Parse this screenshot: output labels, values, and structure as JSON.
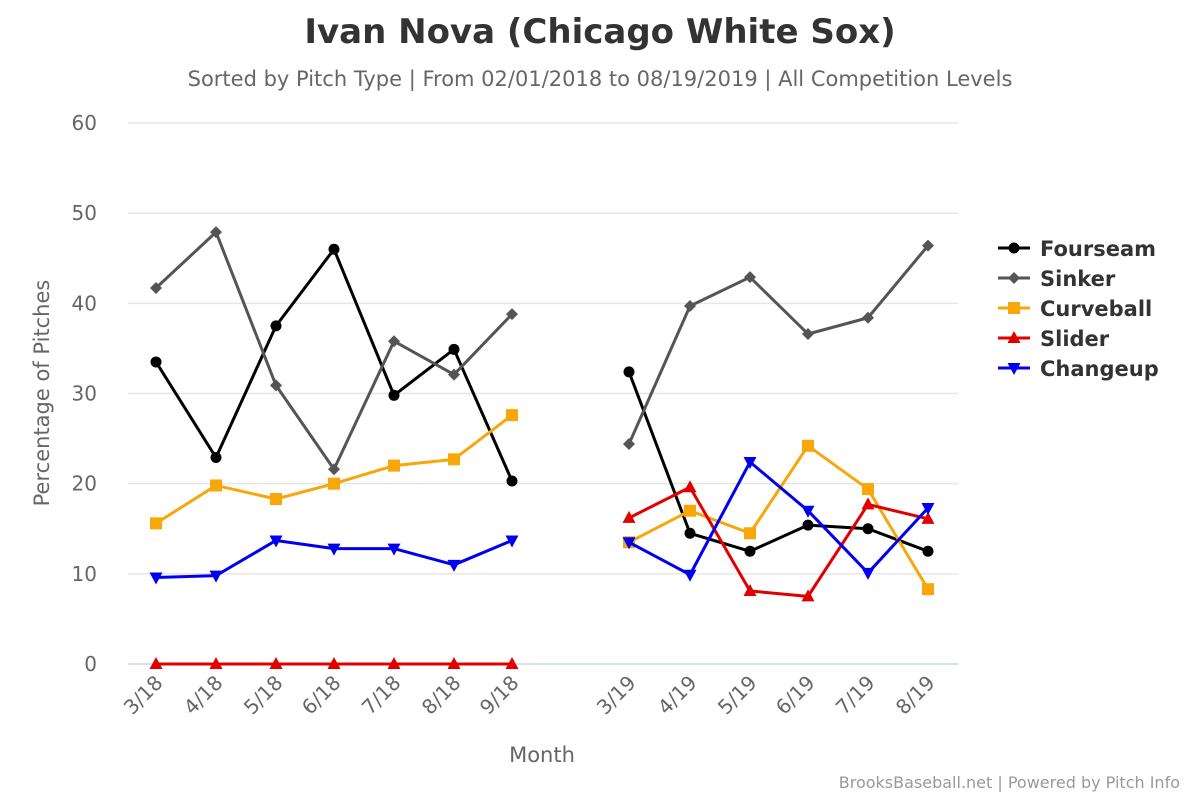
{
  "credits": "BrooksBaseball.net | Powered by Pitch Info",
  "chart_data": {
    "type": "line",
    "title": "Ivan Nova (Chicago White Sox)",
    "subtitle": "Sorted by Pitch Type | From 02/01/2018 to 08/19/2019 | All Competition Levels",
    "xlabel": "Month",
    "ylabel": "Percentage of Pitches",
    "ylim": [
      0,
      60
    ],
    "yticks": [
      0,
      10,
      20,
      30,
      40,
      50,
      60
    ],
    "grid": true,
    "legend_position": "right",
    "categories": [
      "3/18",
      "4/18",
      "5/18",
      "6/18",
      "7/18",
      "8/18",
      "9/18",
      "3/19",
      "4/19",
      "5/19",
      "6/19",
      "7/19",
      "8/19"
    ],
    "series": [
      {
        "name": "Fourseam",
        "color": "#000000",
        "marker": "circle",
        "values": [
          33.5,
          22.9,
          37.5,
          46.0,
          29.8,
          34.9,
          20.3,
          32.4,
          14.5,
          12.5,
          15.4,
          15.0,
          12.5
        ]
      },
      {
        "name": "Sinker",
        "color": "#555555",
        "marker": "diamond",
        "values": [
          41.7,
          47.9,
          30.9,
          21.6,
          35.8,
          32.1,
          38.8,
          24.4,
          39.7,
          42.9,
          36.6,
          38.4,
          46.4
        ]
      },
      {
        "name": "Curveball",
        "color": "#f7a70a",
        "marker": "square",
        "values": [
          15.6,
          19.8,
          18.3,
          20.0,
          22.0,
          22.7,
          27.6,
          13.5,
          17.0,
          14.5,
          24.2,
          19.4,
          8.3
        ]
      },
      {
        "name": "Slider",
        "color": "#e00000",
        "marker": "triangle",
        "values": [
          0,
          0,
          0,
          0,
          0,
          0,
          0,
          16.2,
          19.6,
          8.1,
          7.5,
          17.7,
          16.1
        ]
      },
      {
        "name": "Changeup",
        "color": "#0000ee",
        "marker": "triangle-down",
        "values": [
          9.6,
          9.8,
          13.7,
          12.8,
          12.8,
          11.0,
          13.7,
          13.5,
          9.9,
          22.4,
          17.0,
          10.1,
          17.3
        ]
      }
    ]
  }
}
